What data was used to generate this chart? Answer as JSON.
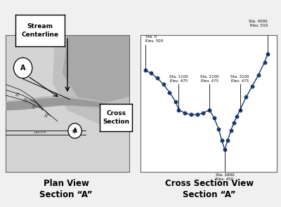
{
  "bg_color": "#f0f0f0",
  "panel_bg": "#d8d8d8",
  "right_bg": "#ffffff",
  "dot_color": "#1b3a6b",
  "line_color": "#1b3a6b",
  "stations": [
    0,
    200,
    400,
    600,
    800,
    1000,
    1100,
    1300,
    1500,
    1700,
    1900,
    2100,
    2250,
    2400,
    2500,
    2600,
    2700,
    2800,
    2900,
    3000,
    3100,
    3300,
    3500,
    3700,
    3900,
    4000
  ],
  "elevations": [
    500,
    498,
    495,
    491,
    486,
    480,
    475,
    473,
    472,
    472,
    473,
    475,
    470,
    463,
    456,
    450,
    456,
    462,
    467,
    471,
    475,
    483,
    490,
    497,
    505,
    510
  ],
  "labels_above": [
    {
      "sta": 0,
      "elev": 500,
      "label": "Sta. 0\nElev. 500",
      "ha": "left"
    },
    {
      "sta": 1100,
      "elev": 475,
      "label": "Sta. 1100\nElev. 475",
      "ha": "center"
    },
    {
      "sta": 2100,
      "elev": 475,
      "label": "Sta. 2100\nElev. 475",
      "ha": "center"
    },
    {
      "sta": 3100,
      "elev": 475,
      "label": "Sta. 3100\nElev. 475",
      "ha": "center"
    },
    {
      "sta": 4000,
      "elev": 510,
      "label": "Sta. 4000\nElev. 510",
      "ha": "right"
    }
  ],
  "labels_below": [
    {
      "sta": 2600,
      "elev": 450,
      "label": "Sta. 2600\nElev. 450",
      "ha": "center"
    }
  ],
  "left_title": "Plan View\nSection “A”",
  "right_title": "Cross Section View\nSection “A”",
  "stream_box": "Stream\nCenterline",
  "cross_box": "Cross\nSection"
}
